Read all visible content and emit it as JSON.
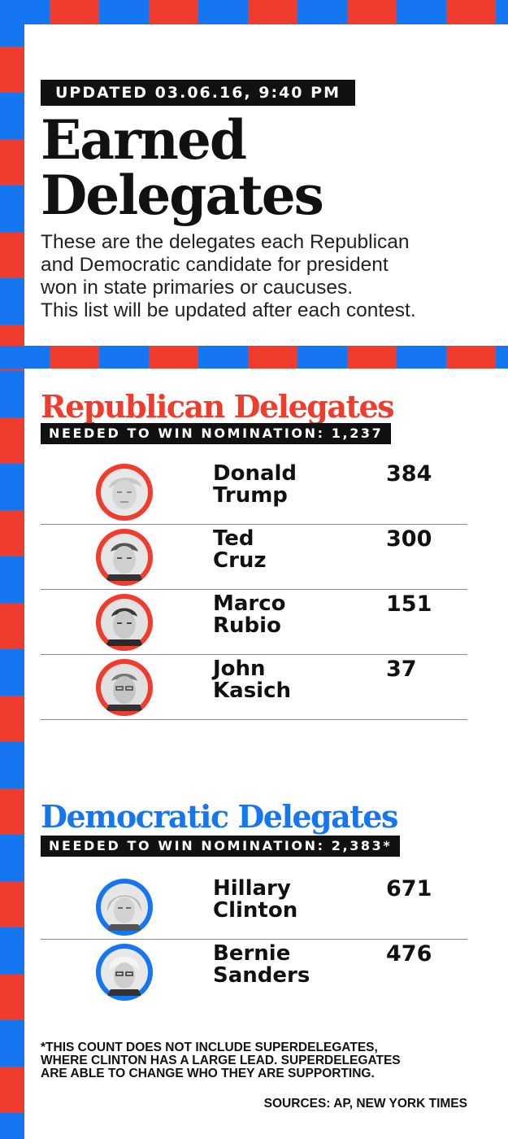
{
  "header": {
    "updated": "UPDATED 03.06.16, 9:40 PM",
    "title": "Earned Delegates",
    "subtitle_lines": [
      "These are the delegates each Republican",
      "and Democratic candidate for president",
      "won in state primaries or caucuses.",
      "This list will be updated after each contest."
    ]
  },
  "colors": {
    "republican": "#ef3c2c",
    "democratic": "#1676f2",
    "text": "#111111"
  },
  "republican": {
    "title": "Republican Delegates",
    "needed": "NEEDED TO WIN NOMINATION: 1,237",
    "candidates": [
      {
        "first": "Donald",
        "last": "Trump",
        "delegates": "384",
        "photo": "donald-trump-photo"
      },
      {
        "first": "Ted",
        "last": "Cruz",
        "delegates": "300",
        "photo": "ted-cruz-photo"
      },
      {
        "first": "Marco",
        "last": "Rubio",
        "delegates": "151",
        "photo": "marco-rubio-photo"
      },
      {
        "first": "John",
        "last": "Kasich",
        "delegates": "37",
        "photo": "john-kasich-photo"
      }
    ]
  },
  "democratic": {
    "title": "Democratic Delegates",
    "needed": "NEEDED TO WIN NOMINATION: 2,383*",
    "candidates": [
      {
        "first": "Hillary",
        "last": "Clinton",
        "delegates": "671",
        "photo": "hillary-clinton-photo"
      },
      {
        "first": "Bernie",
        "last": "Sanders",
        "delegates": "476",
        "photo": "bernie-sanders-photo"
      }
    ]
  },
  "footer": {
    "footnote_lines": [
      "*THIS COUNT DOES NOT INCLUDE SUPERDELEGATES,",
      "WHERE CLINTON HAS A LARGE LEAD. SUPERDELEGATES",
      "ARE ABLE TO CHANGE WHO THEY ARE SUPPORTING."
    ],
    "sources": "SOURCES: AP, NEW YORK TIMES"
  }
}
